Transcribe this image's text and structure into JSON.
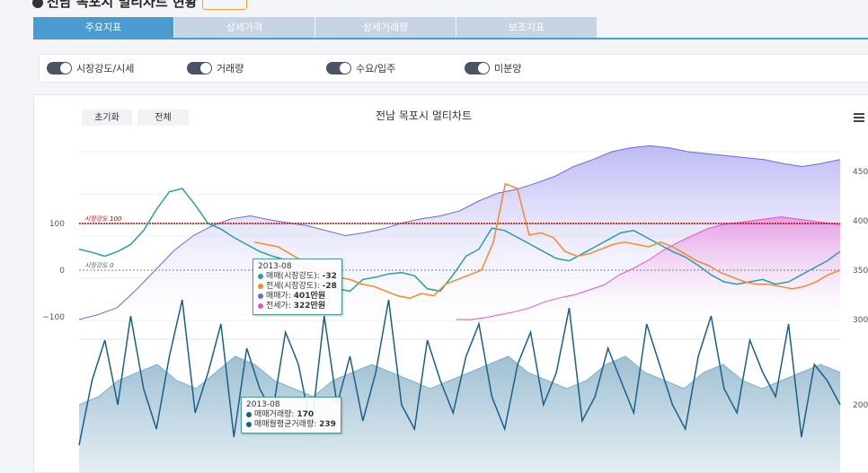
{
  "header": {
    "title": "전남 목포시 멀티차트 현황"
  },
  "tabs": [
    {
      "label": "주요지표",
      "active": true
    },
    {
      "label": "상세가격",
      "active": false
    },
    {
      "label": "상세거래량",
      "active": false
    },
    {
      "label": "보조지표",
      "active": false
    }
  ],
  "toggles": [
    {
      "label": "시장강도/시세",
      "on": true
    },
    {
      "label": "거래량",
      "on": true
    },
    {
      "label": "수요/입주",
      "on": true
    },
    {
      "label": "미분양",
      "on": true
    }
  ],
  "chart": {
    "title": "전남 목포시 멀티차트",
    "reset_label": "초기화",
    "all_label": "전체"
  },
  "chart_data": {
    "type": "line",
    "title": "전남 목포시 멀티차트",
    "upper": {
      "y_left_ticks": [
        "100",
        "0",
        "−100"
      ],
      "y_right_ticks": [
        "450",
        "400",
        "350",
        "300"
      ],
      "reference_lines": [
        {
          "label": "시장강도 100",
          "value": 100,
          "color": "#cc0000"
        },
        {
          "label": "시장강도 0",
          "value": 0,
          "color": "#555555"
        }
      ],
      "series": [
        {
          "name": "매매(시장강도)",
          "color": "#2a9ea0",
          "values": [
            45,
            38,
            30,
            40,
            55,
            85,
            130,
            168,
            175,
            140,
            100,
            88,
            70,
            55,
            40,
            30,
            22,
            12,
            0,
            -25,
            -40,
            -45,
            -20,
            -15,
            -8,
            -5,
            -12,
            -40,
            -45,
            -10,
            30,
            45,
            90,
            85,
            70,
            55,
            40,
            25,
            20,
            35,
            50,
            65,
            80,
            85,
            70,
            55,
            40,
            28,
            10,
            -10,
            -25,
            -30,
            -25,
            -20,
            -30,
            -25,
            -10,
            5,
            20,
            40
          ]
        },
        {
          "name": "전세(시장강도)",
          "color": "#f08a30",
          "values": [
            60,
            55,
            50,
            35,
            20,
            5,
            -5,
            -15,
            -20,
            -30,
            -35,
            -45,
            -55,
            -60,
            -50,
            -55,
            -30,
            -20,
            -10,
            0,
            60,
            185,
            175,
            75,
            80,
            70,
            40,
            30,
            35,
            45,
            55,
            60,
            55,
            50,
            60,
            50,
            35,
            20,
            10,
            -5,
            -15,
            -25,
            -30,
            -30,
            -35,
            -40,
            -35,
            -25,
            -10,
            0
          ]
        },
        {
          "name": "매매가",
          "color": "#6a6ae0",
          "values": [
            300,
            305,
            312,
            330,
            350,
            370,
            385,
            395,
            402,
            405,
            401,
            398,
            395,
            390,
            385,
            388,
            392,
            398,
            402,
            405,
            410,
            420,
            428,
            432,
            438,
            445,
            455,
            462,
            470,
            474,
            476,
            474,
            470,
            468,
            466,
            464,
            462,
            458,
            455,
            458,
            462
          ]
        },
        {
          "name": "전세가",
          "color": "#dd55cc",
          "values": [
            300,
            300,
            302,
            305,
            308,
            312,
            318,
            322,
            325,
            330,
            335,
            345,
            352,
            360,
            370,
            378,
            385,
            392,
            396,
            398,
            400,
            402,
            404,
            402,
            400,
            398,
            396
          ]
        }
      ]
    },
    "lower": {
      "y_right_ticks": [
        "200"
      ],
      "series": [
        {
          "name": "매매거래량",
          "color": "#1a5f8a",
          "values": [
            150,
            230,
            280,
            200,
            310,
            220,
            170,
            260,
            330,
            190,
            240,
            300,
            160,
            270,
            220,
            190,
            290,
            250,
            170,
            310,
            200,
            260,
            180,
            240,
            330,
            200,
            170,
            280,
            230,
            190,
            260,
            300,
            210,
            170,
            250,
            290,
            200,
            240,
            320,
            180,
            210,
            270,
            230,
            190,
            300,
            250,
            200,
            170,
            260,
            310,
            220,
            190,
            280,
            240,
            210,
            300,
            160,
            250,
            230,
            200
          ]
        },
        {
          "name": "매매월평균거래량",
          "color": "#7fb0c8",
          "values": [
            200,
            210,
            230,
            240,
            250,
            230,
            220,
            240,
            260,
            250,
            230,
            220,
            210,
            230,
            240,
            250,
            240,
            230,
            220,
            230,
            240,
            250,
            260,
            240,
            230,
            220,
            230,
            250,
            260,
            240,
            230,
            220,
            240,
            250,
            230,
            220,
            230,
            240,
            250,
            240
          ]
        }
      ]
    },
    "tooltips": [
      {
        "period": "2013-08",
        "rows": [
          {
            "label": "매매(시장강도):",
            "value": "-32",
            "color": "#2a9ea0"
          },
          {
            "label": "전세(시장강도):",
            "value": "-28",
            "color": "#f08a30"
          },
          {
            "label": "매매가:",
            "value": "401만원",
            "color": "#6a6ae0"
          },
          {
            "label": "전세가:",
            "value": "322만원",
            "color": "#dd55cc"
          }
        ]
      },
      {
        "period": "2013-08",
        "rows": [
          {
            "label": "매매거래량:",
            "value": "170",
            "color": "#1a5f8a"
          },
          {
            "label": "매매월평균거래량:",
            "value": "239",
            "color": "#1a5f8a"
          }
        ]
      }
    ]
  }
}
